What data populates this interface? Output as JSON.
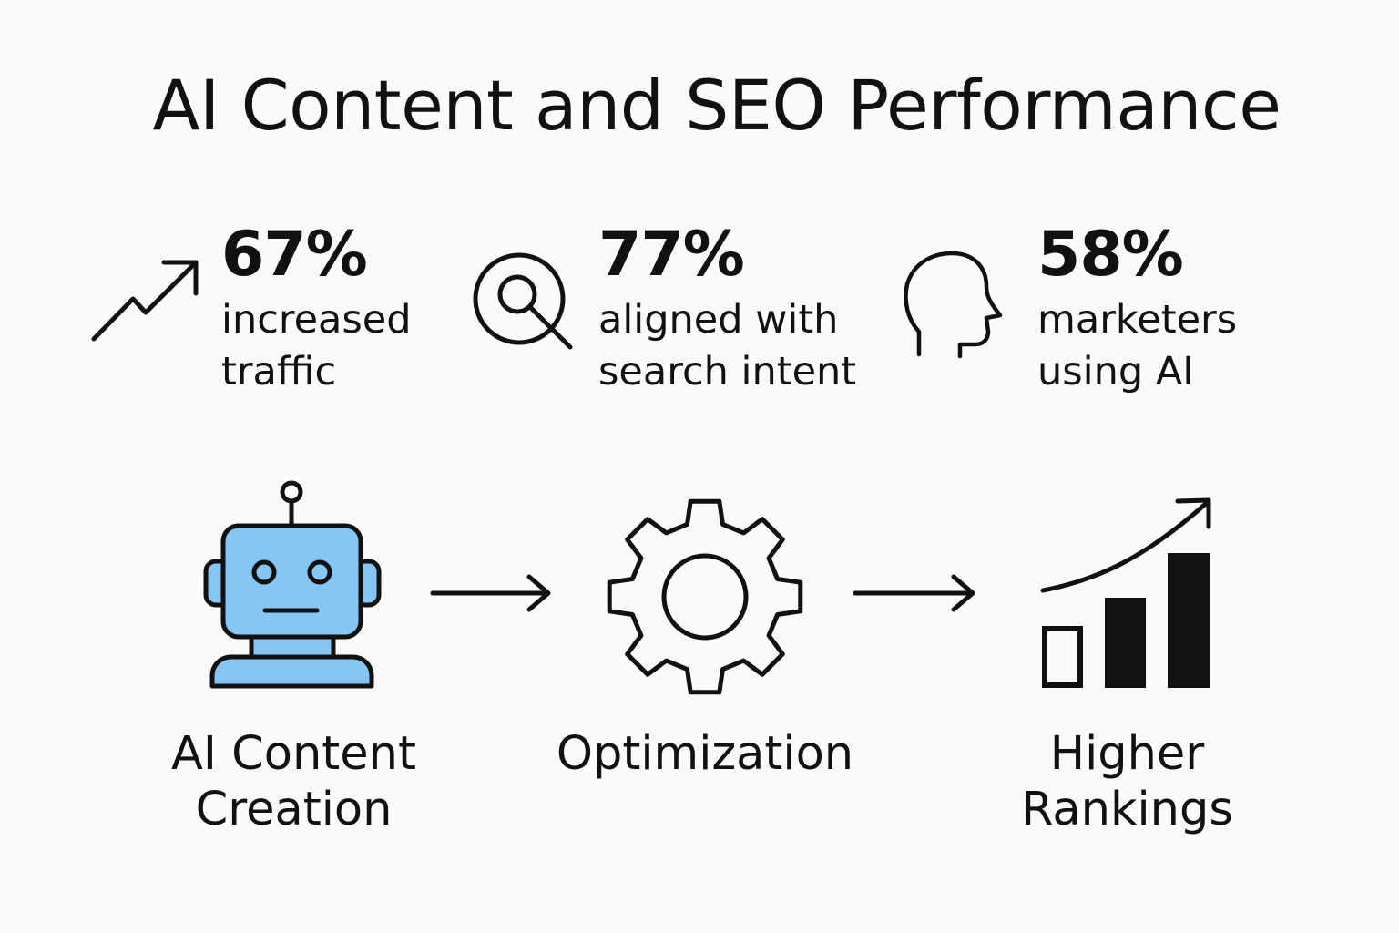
{
  "title": "AI Content and SEO Performance",
  "stats": [
    {
      "value": "67%",
      "label": "increased traffic",
      "icon": "trend-up-arrow-icon"
    },
    {
      "value": "77%",
      "label": "aligned with search intent",
      "icon": "magnifier-target-icon"
    },
    {
      "value": "58%",
      "label": "marketers using AI",
      "icon": "human-head-icon"
    }
  ],
  "flow": [
    {
      "label": "AI Content Creation",
      "icon": "robot-icon"
    },
    {
      "label": "Optimization",
      "icon": "gear-icon"
    },
    {
      "label": "Higher Rankings",
      "icon": "bar-chart-growth-icon"
    }
  ],
  "colors": {
    "background": "#fbfaf8",
    "ink": "#111111",
    "robot_blue": "#87c5f5"
  }
}
